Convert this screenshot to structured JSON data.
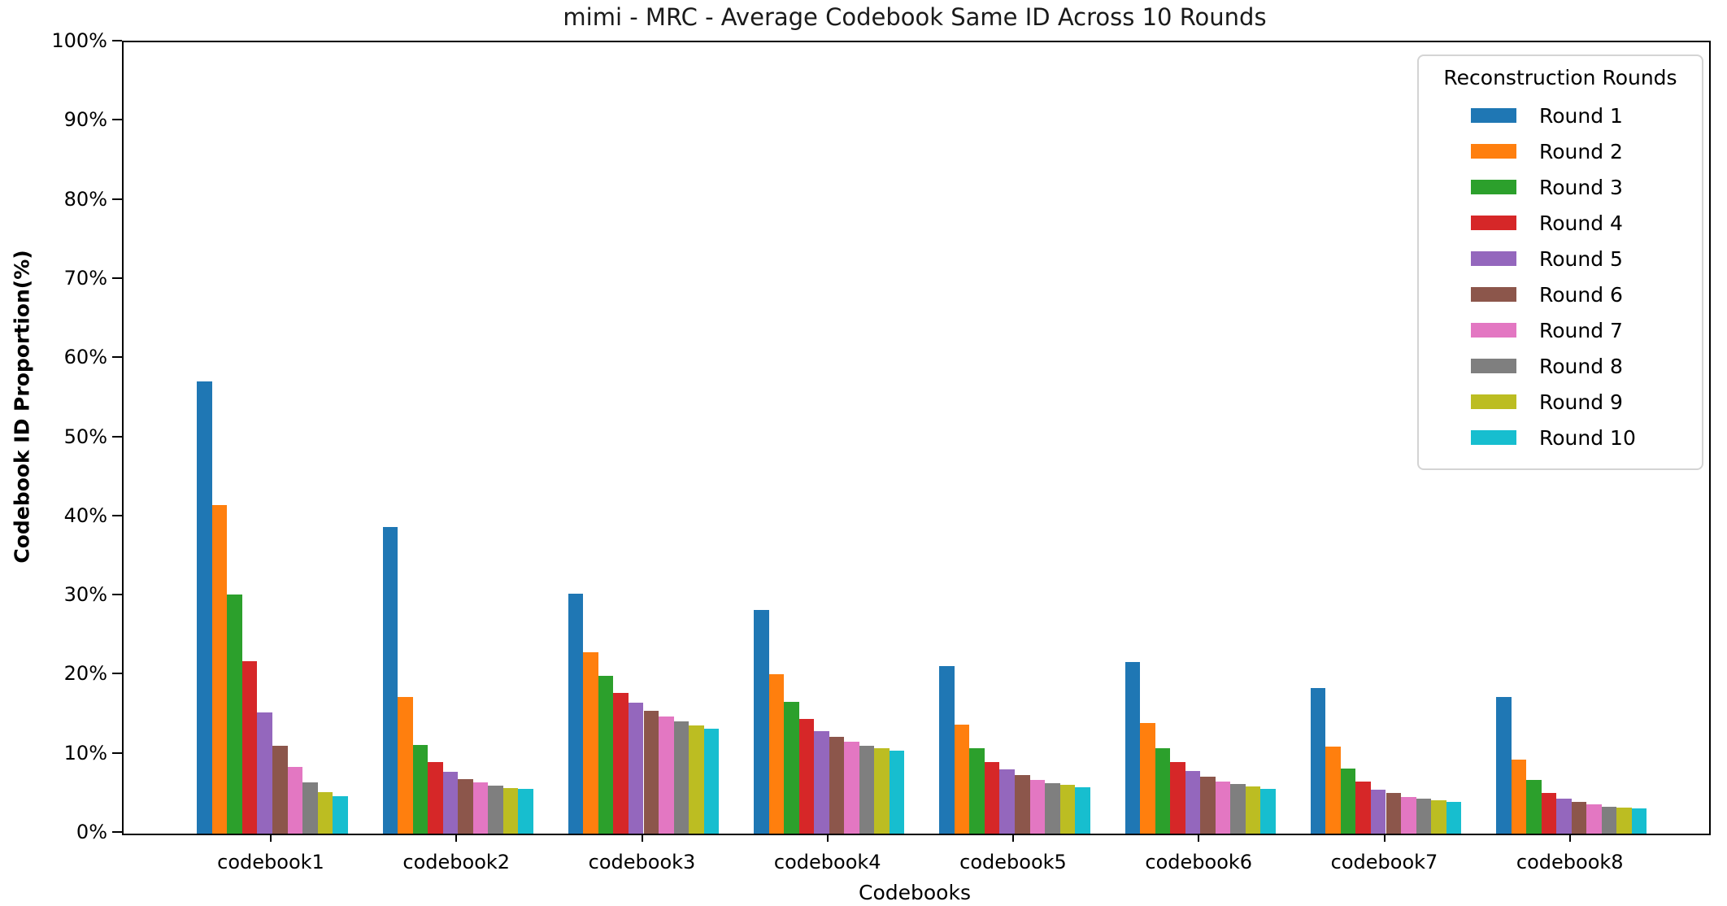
{
  "chart_data": {
    "type": "bar",
    "title": "mimi - MRC - Average Codebook Same ID Across 10 Rounds",
    "xlabel": "Codebooks",
    "ylabel": "Codebook ID Proportion(%)",
    "legend_title": "Reconstruction Rounds",
    "legend_position": "upper right",
    "grid": false,
    "ylim": [
      0,
      100
    ],
    "ytick_labels": [
      "0%",
      "10%",
      "20%",
      "30%",
      "40%",
      "50%",
      "60%",
      "70%",
      "80%",
      "90%",
      "100%"
    ],
    "categories": [
      "codebook1",
      "codebook2",
      "codebook3",
      "codebook4",
      "codebook5",
      "codebook6",
      "codebook7",
      "codebook8"
    ],
    "series": [
      {
        "name": "Round 1",
        "color": "#1f77b4",
        "values": [
          57.1,
          38.7,
          30.3,
          28.3,
          21.2,
          21.7,
          18.4,
          17.3
        ]
      },
      {
        "name": "Round 2",
        "color": "#ff7f0e",
        "values": [
          41.5,
          17.3,
          22.9,
          20.1,
          13.8,
          14.0,
          11.0,
          9.4
        ]
      },
      {
        "name": "Round 3",
        "color": "#2ca02c",
        "values": [
          30.2,
          11.2,
          19.9,
          16.6,
          10.8,
          10.8,
          8.2,
          6.8
        ]
      },
      {
        "name": "Round 4",
        "color": "#d62728",
        "values": [
          21.8,
          9.0,
          17.8,
          14.5,
          9.0,
          9.0,
          6.6,
          5.1
        ]
      },
      {
        "name": "Round 5",
        "color": "#9467bd",
        "values": [
          15.3,
          7.8,
          16.5,
          13.0,
          8.1,
          7.9,
          5.6,
          4.4
        ]
      },
      {
        "name": "Round 6",
        "color": "#8c564b",
        "values": [
          11.1,
          6.9,
          15.5,
          12.2,
          7.4,
          7.2,
          5.1,
          4.0
        ]
      },
      {
        "name": "Round 7",
        "color": "#e377c2",
        "values": [
          8.4,
          6.5,
          14.8,
          11.6,
          6.8,
          6.6,
          4.6,
          3.7
        ]
      },
      {
        "name": "Round 8",
        "color": "#7f7f7f",
        "values": [
          6.5,
          6.1,
          14.2,
          11.1,
          6.4,
          6.3,
          4.4,
          3.4
        ]
      },
      {
        "name": "Round 9",
        "color": "#bcbd22",
        "values": [
          5.2,
          5.8,
          13.7,
          10.8,
          6.2,
          6.0,
          4.2,
          3.3
        ]
      },
      {
        "name": "Round 10",
        "color": "#17becf",
        "values": [
          4.7,
          5.7,
          13.3,
          10.5,
          5.9,
          5.7,
          4.0,
          3.2
        ]
      }
    ]
  }
}
